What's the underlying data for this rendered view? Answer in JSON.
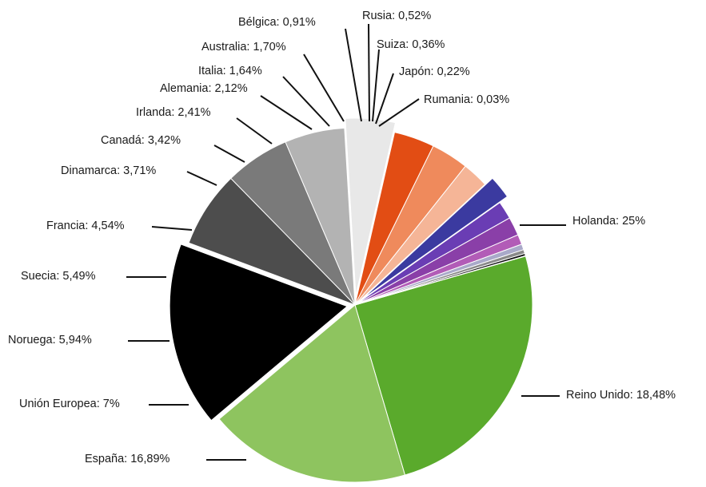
{
  "chart_data": {
    "type": "pie",
    "title": "",
    "slices": [
      {
        "label": "Holanda: 25%",
        "name": "Holanda",
        "value": 25,
        "color": "#5aaa2c"
      },
      {
        "label": "Reino Unido: 18,48%",
        "name": "Reino Unido",
        "value": 18.48,
        "color": "#8ec45f"
      },
      {
        "label": "España: 16,89%",
        "name": "España",
        "value": 16.89,
        "color": "#000000"
      },
      {
        "label": "Unión Europea: 7%",
        "name": "Unión Europea",
        "value": 7,
        "color": "#4d4d4d"
      },
      {
        "label": "Noruega: 5,94%",
        "name": "Noruega",
        "value": 5.94,
        "color": "#7a7a7a"
      },
      {
        "label": "Suecia: 5,49%",
        "name": "Suecia",
        "value": 5.49,
        "color": "#b3b3b3"
      },
      {
        "label": "Francia: 4,54%",
        "name": "Francia",
        "value": 4.54,
        "color": "#e8e8e8"
      },
      {
        "label": "Dinamarca: 3,71%",
        "name": "Dinamarca",
        "value": 3.71,
        "color": "#e24d14"
      },
      {
        "label": "Canadá: 3,42%",
        "name": "Canadá",
        "value": 3.42,
        "color": "#ef8a5c"
      },
      {
        "label": "Irlanda: 2,41%",
        "name": "Irlanda",
        "value": 2.41,
        "color": "#f5b597"
      },
      {
        "label": "Alemania: 2,12%",
        "name": "Alemania",
        "value": 2.12,
        "color": "#3b3aa0"
      },
      {
        "label": "Italia: 1,64%",
        "name": "Italia",
        "value": 1.64,
        "color": "#6a3db4"
      },
      {
        "label": "Australia: 1,70%",
        "name": "Australia",
        "value": 1.7,
        "color": "#8a3fa8"
      },
      {
        "label": "Bélgica: 0,91%",
        "name": "Bélgica",
        "value": 0.91,
        "color": "#b25cb7"
      },
      {
        "label": "Rusia: 0,52%",
        "name": "Rusia",
        "value": 0.52,
        "color": "#a9a9c9"
      },
      {
        "label": "Suiza: 0,36%",
        "name": "Suiza",
        "value": 0.36,
        "color": "#8a8a8a"
      },
      {
        "label": "Japón: 0,22%",
        "name": "Japón",
        "value": 0.22,
        "color": "#111111"
      },
      {
        "label": "Rumania: 0,03%",
        "name": "Rumania",
        "value": 0.03,
        "color": "#777777"
      }
    ]
  }
}
